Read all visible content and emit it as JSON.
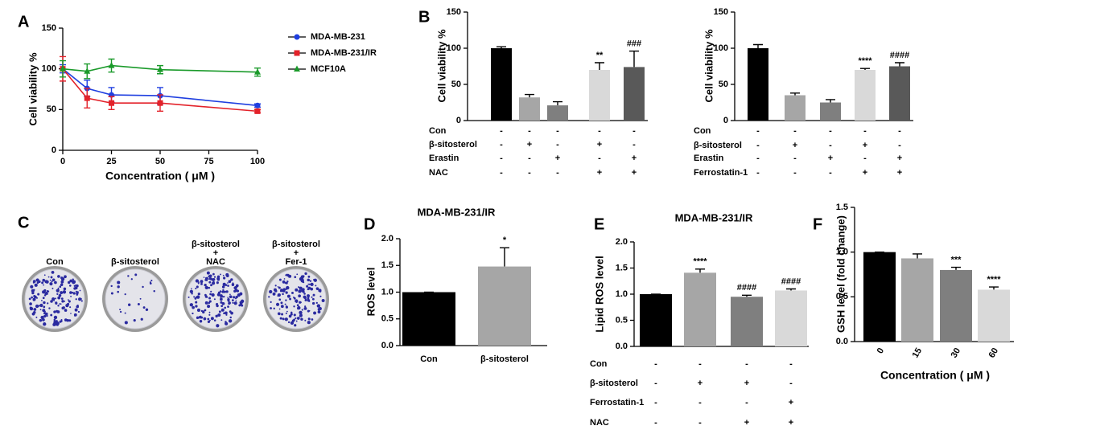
{
  "chart_data": [
    {
      "type": "line",
      "panel": "A",
      "ylabel": "Cell viability %",
      "xlabel": "Concentration ( μM )",
      "x": [
        0,
        12.5,
        25,
        50,
        100
      ],
      "xlim": [
        0,
        100
      ],
      "xticks": [
        0,
        25,
        50,
        75,
        100
      ],
      "ylim": [
        0,
        150
      ],
      "yticks": [
        0,
        50,
        100,
        150
      ],
      "series": [
        {
          "name": "MDA-MB-231",
          "color": "#1f3fe0",
          "marker": "circle",
          "values": [
            100,
            76,
            68,
            67,
            55
          ],
          "errors": [
            5,
            10,
            9,
            10,
            2
          ]
        },
        {
          "name": "MDA-MB-231/IR",
          "color": "#e3222a",
          "marker": "square",
          "values": [
            100,
            64,
            58,
            58,
            48
          ],
          "errors": [
            15,
            12,
            8,
            10,
            2
          ]
        },
        {
          "name": "MCF10A",
          "color": "#1a9a2a",
          "marker": "triangle",
          "values": [
            100,
            97,
            104,
            99,
            96
          ],
          "errors": [
            10,
            9,
            8,
            5,
            5
          ]
        }
      ]
    },
    {
      "type": "bar",
      "panel": "B",
      "ylabel": "Cell viability %",
      "values": [
        100,
        32,
        21,
        70,
        74
      ],
      "errors": [
        2,
        4,
        5,
        10,
        22
      ],
      "colors": [
        "#000000",
        "#a6a6a6",
        "#7f7f7f",
        "#d9d9d9",
        "#595959"
      ],
      "annotations": [
        null,
        null,
        null,
        "**",
        "###"
      ],
      "ylim": [
        0,
        150
      ],
      "yticks": [
        0,
        50,
        100,
        150
      ],
      "conditions": [
        {
          "label": "Con",
          "signs": [
            "-",
            "-",
            "-",
            "-",
            "-"
          ]
        },
        {
          "label": "β-sitosterol",
          "signs": [
            "-",
            "+",
            "-",
            "+",
            "-"
          ]
        },
        {
          "label": "Erastin",
          "signs": [
            "-",
            "-",
            "+",
            "-",
            "+"
          ]
        },
        {
          "label": "NAC",
          "signs": [
            "-",
            "-",
            "-",
            "+",
            "+"
          ]
        }
      ]
    },
    {
      "type": "bar",
      "ylabel": "Cell viability %",
      "values": [
        100,
        35,
        25,
        70,
        75
      ],
      "errors": [
        5,
        3,
        4,
        2,
        5
      ],
      "colors": [
        "#000000",
        "#a6a6a6",
        "#7f7f7f",
        "#d9d9d9",
        "#595959"
      ],
      "annotations": [
        null,
        null,
        null,
        "****",
        "####"
      ],
      "ylim": [
        0,
        150
      ],
      "yticks": [
        0,
        50,
        100,
        150
      ],
      "conditions": [
        {
          "label": "Con",
          "signs": [
            "-",
            "-",
            "-",
            "-",
            "-"
          ]
        },
        {
          "label": "β-sitosterol",
          "signs": [
            "-",
            "+",
            "-",
            "+",
            "-"
          ]
        },
        {
          "label": "Erastin",
          "signs": [
            "-",
            "-",
            "+",
            "-",
            "+"
          ]
        },
        {
          "label": "Ferrostatin-1",
          "signs": [
            "-",
            "-",
            "-",
            "+",
            "+"
          ]
        }
      ]
    },
    {
      "type": "image",
      "panel": "C",
      "labels": [
        [
          "Con"
        ],
        [
          "β-sitosterol"
        ],
        [
          "β-sitosterol",
          "+",
          "NAC"
        ],
        [
          "β-sitosterol",
          "+",
          "Fer-1"
        ]
      ]
    },
    {
      "type": "bar",
      "panel": "D",
      "title": "MDA-MB-231/IR",
      "ylabel": "ROS level",
      "categories": [
        "Con",
        "β-sitosterol"
      ],
      "values": [
        1.0,
        1.48
      ],
      "errors": [
        0,
        0.35
      ],
      "colors": [
        "#000000",
        "#a6a6a6"
      ],
      "annotations": [
        null,
        "*"
      ],
      "ylim": [
        0,
        2
      ],
      "yticks": [
        {
          "value": 0,
          "label": "0.0"
        },
        {
          "value": 0.5,
          "label": "0.5"
        },
        {
          "value": 1,
          "label": "1.0"
        },
        {
          "value": 1.5,
          "label": "1.5"
        },
        {
          "value": 2,
          "label": "2.0"
        }
      ]
    },
    {
      "type": "bar",
      "panel": "E",
      "title": "MDA-MB-231/IR",
      "ylabel": "Lipid ROS level",
      "values": [
        1.0,
        1.41,
        0.95,
        1.07
      ],
      "errors": [
        0,
        0.07,
        0.03,
        0.03
      ],
      "colors": [
        "#000000",
        "#a6a6a6",
        "#7f7f7f",
        "#d9d9d9"
      ],
      "annotations": [
        null,
        "****",
        "####",
        "####"
      ],
      "ylim": [
        0,
        2
      ],
      "yticks": [
        {
          "value": 0,
          "label": "0.0"
        },
        {
          "value": 0.5,
          "label": "0.5"
        },
        {
          "value": 1,
          "label": "1.0"
        },
        {
          "value": 1.5,
          "label": "1.5"
        },
        {
          "value": 2,
          "label": "2.0"
        }
      ],
      "conditions": [
        {
          "label": "Con",
          "signs": [
            "-",
            "-",
            "-",
            "-"
          ]
        },
        {
          "label": "β-sitosterol",
          "signs": [
            "-",
            "+",
            "+",
            "-"
          ]
        },
        {
          "label": "Ferrostatin-1",
          "signs": [
            "-",
            "-",
            "-",
            "+"
          ]
        },
        {
          "label": "NAC",
          "signs": [
            "-",
            "-",
            "+",
            "+"
          ]
        }
      ]
    },
    {
      "type": "bar",
      "panel": "F",
      "ylabel": "GSH level (fold change)",
      "xlabel": "Concentration ( μM )",
      "categories": [
        "0",
        "15",
        "30",
        "60"
      ],
      "values": [
        1.0,
        0.93,
        0.8,
        0.58
      ],
      "errors": [
        0,
        0.05,
        0.03,
        0.03
      ],
      "colors": [
        "#000000",
        "#a6a6a6",
        "#7f7f7f",
        "#d9d9d9"
      ],
      "annotations": [
        null,
        null,
        "***",
        "****"
      ],
      "ylim": [
        0,
        1.5
      ],
      "yticks": [
        {
          "value": 0,
          "label": "0.0"
        },
        {
          "value": 0.5,
          "label": "0.5"
        },
        {
          "value": 1,
          "label": "1.0"
        },
        {
          "value": 1.5,
          "label": "1.5"
        }
      ]
    }
  ]
}
